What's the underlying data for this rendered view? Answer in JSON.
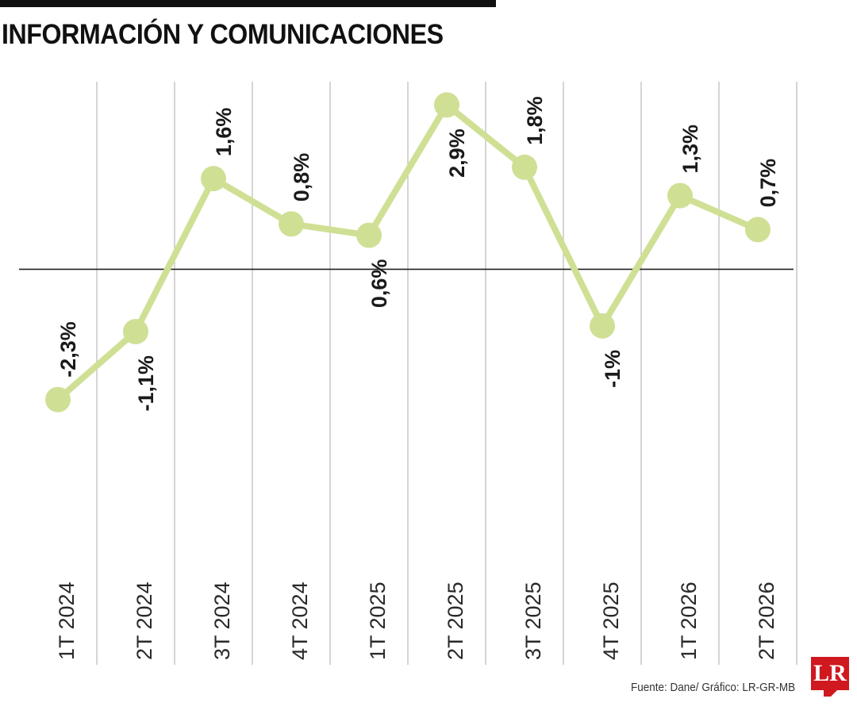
{
  "title": "INFORMACIÓN Y COMUNICACIONES",
  "source": "Fuente: Dane/ Gráfico: LR-GR-MB",
  "logo_text": "LR",
  "colors": {
    "line": "#cfe095",
    "point": "#cfe095",
    "grid": "#b9b9b9",
    "baseline": "#222222",
    "logo": "#d0181f"
  },
  "chart_data": {
    "type": "line",
    "title": "INFORMACIÓN Y COMUNICACIONES",
    "xlabel": "",
    "ylabel": "",
    "categories": [
      "1T 2024",
      "2T 2024",
      "3T 2024",
      "4T 2024",
      "1T 2025",
      "2T 2025",
      "3T 2025",
      "4T 2025",
      "1T 2026",
      "2T 2026"
    ],
    "values": [
      -2.3,
      -1.1,
      1.6,
      0.8,
      0.6,
      2.9,
      1.8,
      -1,
      1.3,
      0.7
    ],
    "data_labels": [
      "-2,3%",
      "-1,1%",
      "1,6%",
      "0,8%",
      "0,6%",
      "2,9%",
      "1,8%",
      "-1%",
      "1,3%",
      "0,7%"
    ],
    "label_position": [
      "above",
      "below",
      "above",
      "above",
      "below",
      "below",
      "above",
      "below",
      "above",
      "above"
    ],
    "ylim": [
      -3.2,
      3.1
    ],
    "grid": "vertical",
    "legend": "none"
  }
}
